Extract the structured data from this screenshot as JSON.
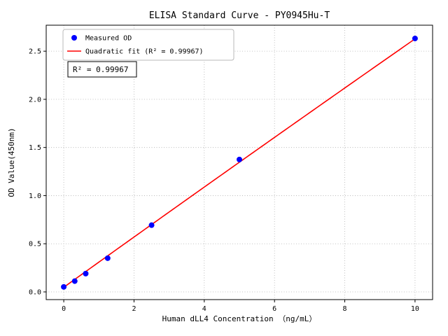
{
  "chart_data": {
    "type": "scatter",
    "title": "ELISA Standard Curve - PY0945Hu-T",
    "xlabel": "Human dLL4 Concentration （ng/mL）",
    "ylabel": "OD Value(450nm)",
    "xlim": [
      -0.5,
      10.5
    ],
    "ylim": [
      -0.08,
      2.77
    ],
    "xticks": [
      0,
      2,
      4,
      6,
      8,
      10
    ],
    "yticks": [
      0.0,
      0.5,
      1.0,
      1.5,
      2.0,
      2.5
    ],
    "grid": true,
    "legend_position": "upper-left",
    "series": [
      {
        "name": "Measured OD",
        "type": "scatter",
        "color": "#0000ff",
        "x": [
          0,
          0.3125,
          0.625,
          1.25,
          2.5,
          5,
          10
        ],
        "y": [
          0.052,
          0.112,
          0.19,
          0.35,
          0.693,
          1.375,
          2.632
        ]
      },
      {
        "name": "Quadratic fit (R² = 0.99967)",
        "type": "line",
        "color": "#ff0000",
        "fit": {
          "a": 0.048,
          "b": 0.2616,
          "c": -0.00036,
          "x_range": [
            0,
            10
          ]
        }
      }
    ],
    "annotation": {
      "text": "R² = 0.99967"
    },
    "colors": {
      "marker": "#0000ff",
      "fit_line": "#ff0000",
      "grid": "#b0b0b0",
      "frame": "#000000",
      "background": "#ffffff"
    }
  }
}
